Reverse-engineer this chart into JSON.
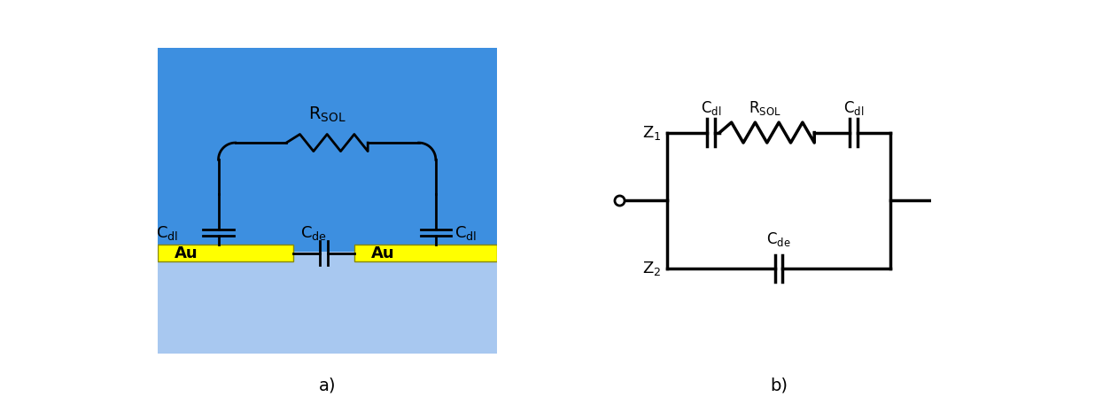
{
  "bg_color": "#ffffff",
  "panel_a_bg_dark": "#3d8fe0",
  "panel_a_bg_light": "#a8c8f0",
  "panel_a_electrode_color": "#ffff00",
  "panel_a_electrode_border": "#888800",
  "label_a": "a)",
  "label_b": "b)",
  "line_color": "#000000",
  "text_color": "#000000",
  "figsize": [
    12.36,
    4.48
  ],
  "dpi": 100
}
